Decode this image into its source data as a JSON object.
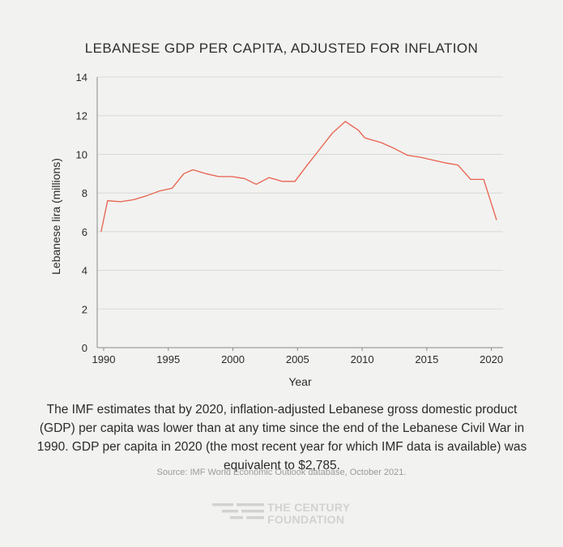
{
  "chart_data": {
    "type": "line",
    "title": "LEBANESE GDP PER CAPITA, ADJUSTED FOR INFLATION",
    "xlabel": "Year",
    "ylabel": "Lebanese lira (millions)",
    "xlim": [
      1989.5,
      2020.9
    ],
    "ylim": [
      0,
      14
    ],
    "yticks": [
      0,
      2,
      4,
      6,
      8,
      10,
      12,
      14
    ],
    "xticks": [
      1990,
      1995,
      2000,
      2005,
      2010,
      2015,
      2020
    ],
    "grid": "horizontal",
    "line_color": "#e8604c",
    "series": [
      {
        "x": [
          1989.8,
          1990.3,
          1991.3,
          1992.3,
          1993.3,
          1994.3,
          1995.3,
          1996.2,
          1996.9,
          1997.9,
          1998.9,
          1999.9,
          2000.9,
          2001.8,
          2002.8,
          2003.8,
          2004.8,
          2005.7,
          2006.7,
          2007.7,
          2008.7,
          2009.7,
          2010.2,
          2011.5,
          2012.5,
          2013.5,
          2014.5,
          2015.5,
          2016.5,
          2017.4,
          2018.4,
          2019.4,
          2020.4
        ],
        "values": [
          6.0,
          7.6,
          7.55,
          7.65,
          7.85,
          8.1,
          8.25,
          9.0,
          9.2,
          9.0,
          8.85,
          8.85,
          8.75,
          8.45,
          8.8,
          8.6,
          8.6,
          9.4,
          10.25,
          11.1,
          11.7,
          11.25,
          10.85,
          10.6,
          10.3,
          9.95,
          9.85,
          9.7,
          9.55,
          9.45,
          8.7,
          8.7,
          6.6
        ]
      }
    ]
  },
  "caption": "The IMF estimates that by 2020, inflation-adjusted Lebanese gross domestic product (GDP) per capita was lower than at any time since the end of the Lebanese Civil War in 1990. GDP per capita in 2020 (the most recent year for which IMF data is available) was equivalent to $2,785.",
  "source": "Source: IMF World Economic Outlook database, October 2021.",
  "logo": {
    "line1": "THE CENTURY",
    "line2": "FOUNDATION",
    "color": "#d2d2d2"
  }
}
